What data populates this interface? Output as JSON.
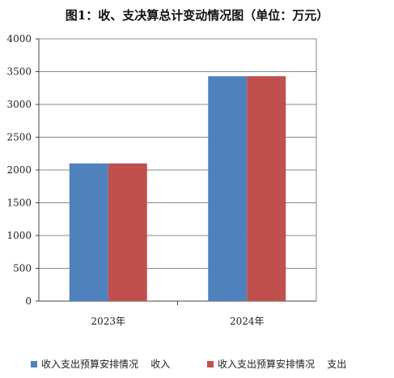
{
  "chart_data": {
    "type": "bar",
    "title": "图1：收、支决算总计变动情况图（单位：万元）",
    "categories": [
      "2023年",
      "2024年"
    ],
    "series": [
      {
        "name": "收入支出预算安排情况    收入",
        "values": [
          2100,
          3430
        ],
        "color": "#4F81BD"
      },
      {
        "name": "收入支出预算安排情况    支出",
        "values": [
          2100,
          3430
        ],
        "color": "#C0504D"
      }
    ],
    "ylim": [
      0,
      4000
    ],
    "yticks": [
      "0",
      "500",
      "1000",
      "1500",
      "2000",
      "2500",
      "3000",
      "3500",
      "4000"
    ],
    "grid": true,
    "legend_position": "bottom"
  }
}
